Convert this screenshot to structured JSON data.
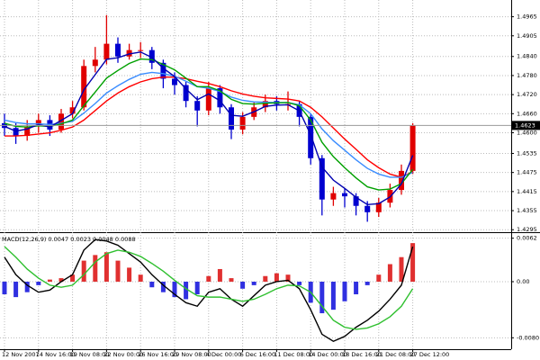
{
  "chart_data": [
    {
      "type": "candlestick",
      "categories": [
        "12 Nov 2007",
        null,
        null,
        "14 Nov 16:00",
        null,
        null,
        "19 Nov 08:00",
        null,
        null,
        "22 Nov 00:00",
        null,
        null,
        "26 Nov 16:00",
        null,
        null,
        "29 Nov 08:00",
        null,
        null,
        "4 Dec 00:00",
        null,
        null,
        "6 Dec 16:00",
        null,
        null,
        "11 Dec 08:00",
        null,
        null,
        "14 Dec 00:00",
        null,
        null,
        "18 Dec 16:00",
        null,
        null,
        "21 Dec 08:00",
        null,
        null,
        "27 Dec 12:00"
      ],
      "open": [
        1.463,
        1.4615,
        1.459,
        1.462,
        1.464,
        1.461,
        1.466,
        1.468,
        1.481,
        1.483,
        1.488,
        1.484,
        1.486,
        1.486,
        1.482,
        1.477,
        1.475,
        1.47,
        1.467,
        1.474,
        1.468,
        1.461,
        1.465,
        1.468,
        1.47,
        1.469,
        1.469,
        1.465,
        1.452,
        1.439,
        1.441,
        1.44,
        1.437,
        1.435,
        1.438,
        1.442,
        1.448
      ],
      "high": [
        1.466,
        1.463,
        1.464,
        1.466,
        1.4655,
        1.4675,
        1.47,
        1.483,
        1.487,
        1.497,
        1.49,
        1.488,
        1.4885,
        1.487,
        1.483,
        1.479,
        1.476,
        1.4715,
        1.476,
        1.475,
        1.469,
        1.4665,
        1.4695,
        1.472,
        1.4715,
        1.473,
        1.47,
        1.466,
        1.453,
        1.443,
        1.4425,
        1.441,
        1.4385,
        1.4395,
        1.444,
        1.45,
        1.463
      ],
      "low": [
        1.459,
        1.4565,
        1.4575,
        1.46,
        1.459,
        1.46,
        1.4645,
        1.467,
        1.479,
        1.4815,
        1.482,
        1.483,
        1.4835,
        1.48,
        1.474,
        1.472,
        1.468,
        1.462,
        1.4655,
        1.466,
        1.458,
        1.4595,
        1.464,
        1.4665,
        1.467,
        1.467,
        1.462,
        1.45,
        1.434,
        1.437,
        1.4365,
        1.434,
        1.432,
        1.4335,
        1.4365,
        1.4405,
        1.447
      ],
      "close": [
        1.4615,
        1.459,
        1.462,
        1.464,
        1.461,
        1.466,
        1.468,
        1.481,
        1.483,
        1.488,
        1.484,
        1.486,
        1.486,
        1.482,
        1.477,
        1.475,
        1.47,
        1.467,
        1.474,
        1.468,
        1.461,
        1.465,
        1.468,
        1.47,
        1.469,
        1.469,
        1.465,
        1.452,
        1.439,
        1.441,
        1.44,
        1.437,
        1.435,
        1.438,
        1.442,
        1.448,
        1.4623
      ],
      "up_color": "#e00000",
      "down_color": "#0000d0",
      "series": [
        {
          "color": "#ff0000",
          "values": [
            1.459,
            1.459,
            1.4592,
            1.4596,
            1.46,
            1.4608,
            1.4618,
            1.464,
            1.467,
            1.47,
            1.4725,
            1.4745,
            1.476,
            1.477,
            1.4775,
            1.4775,
            1.477,
            1.4762,
            1.4755,
            1.4745,
            1.4732,
            1.4722,
            1.4715,
            1.471,
            1.4708,
            1.4706,
            1.47,
            1.468,
            1.465,
            1.4615,
            1.458,
            1.4548,
            1.4515,
            1.449,
            1.447,
            1.446,
            1.4478
          ]
        },
        {
          "color": "#3a8cff",
          "values": [
            1.464,
            1.4632,
            1.4628,
            1.4628,
            1.4626,
            1.463,
            1.4636,
            1.4662,
            1.4692,
            1.4725,
            1.4748,
            1.4768,
            1.4784,
            1.479,
            1.4786,
            1.4778,
            1.4762,
            1.4745,
            1.474,
            1.473,
            1.4712,
            1.4702,
            1.4697,
            1.4696,
            1.4695,
            1.4695,
            1.4688,
            1.466,
            1.4612,
            1.4575,
            1.4545,
            1.4515,
            1.4488,
            1.447,
            1.446,
            1.446,
            1.4475
          ]
        },
        {
          "color": "#00a000",
          "values": [
            1.463,
            1.462,
            1.4618,
            1.4622,
            1.462,
            1.4628,
            1.464,
            1.4685,
            1.4728,
            1.4772,
            1.4796,
            1.4818,
            1.4832,
            1.483,
            1.4815,
            1.4798,
            1.4772,
            1.4745,
            1.4745,
            1.4732,
            1.4705,
            1.4692,
            1.469,
            1.4693,
            1.4694,
            1.4695,
            1.4685,
            1.464,
            1.457,
            1.4525,
            1.449,
            1.4458,
            1.443,
            1.442,
            1.4423,
            1.444,
            1.4485
          ]
        },
        {
          "color": "#0000b0",
          "values": [
            1.462,
            1.4605,
            1.4612,
            1.4626,
            1.4618,
            1.4639,
            1.466,
            1.4735,
            1.4783,
            1.4831,
            1.4836,
            1.4848,
            1.4854,
            1.4837,
            1.4803,
            1.4777,
            1.4738,
            1.4704,
            1.4722,
            1.4701,
            1.4655,
            1.4652,
            1.4666,
            1.4683,
            1.4687,
            1.4688,
            1.4669,
            1.4594,
            1.4492,
            1.4451,
            1.4425,
            1.4397,
            1.4374,
            1.4377,
            1.4398,
            1.4439,
            1.4529
          ]
        }
      ],
      "current_price": 1.4623,
      "ylim": [
        1.429,
        1.5012
      ],
      "yticks": [
        1.4965,
        1.4905,
        {
          "value": 1.484,
          "label": "1.4840"
        },
        {
          "value": 1.478,
          "label": "1.4780"
        },
        {
          "value": 1.472,
          "label": "1.4720"
        },
        {
          "value": 1.466,
          "label": "1.4660"
        },
        {
          "value": 1.46,
          "label": "1.4600"
        },
        1.4535,
        1.4475,
        1.4415,
        1.4355,
        1.4295
      ],
      "grid": true
    },
    {
      "type": "macd",
      "title": "MACD(12,26,9) 0.0047 0.0023 0.0048 0.0088",
      "histogram": [
        -0.0018,
        -0.0022,
        -0.0015,
        -0.0005,
        0.0003,
        0.0005,
        0.001,
        0.003,
        0.0038,
        0.0042,
        0.003,
        0.002,
        0.001,
        -0.0008,
        -0.0015,
        -0.0022,
        -0.0025,
        -0.0018,
        0.0008,
        0.0018,
        0.0005,
        -0.001,
        -0.0005,
        0.0008,
        0.0012,
        0.001,
        -0.0005,
        -0.003,
        -0.0045,
        -0.004,
        -0.0028,
        -0.0018,
        -0.0005,
        0.001,
        0.0025,
        0.0035,
        0.0055
      ],
      "positive_color": "#e03030",
      "negative_color": "#3030e0",
      "series": [
        {
          "color": "#000000",
          "values": [
            0.0035,
            0.001,
            -0.0005,
            -0.0015,
            -0.0012,
            0.0,
            0.001,
            0.0045,
            0.006,
            0.0058,
            0.0052,
            0.004,
            0.0028,
            0.001,
            -0.0005,
            -0.0018,
            -0.003,
            -0.0035,
            -0.0015,
            -0.001,
            -0.0025,
            -0.0035,
            -0.002,
            -0.0005,
            0.0,
            0.0002,
            -0.001,
            -0.004,
            -0.0075,
            -0.0085,
            -0.0078,
            -0.0065,
            -0.0055,
            -0.0042,
            -0.0025,
            -0.0005,
            0.005
          ]
        },
        {
          "color": "#30c030",
          "values": [
            0.005,
            0.0035,
            0.0018,
            0.0005,
            -0.0005,
            -0.0008,
            -0.0005,
            0.001,
            0.0028,
            0.004,
            0.0045,
            0.0042,
            0.0036,
            0.0026,
            0.0015,
            0.0002,
            -0.001,
            -0.002,
            -0.0022,
            -0.0022,
            -0.0025,
            -0.0028,
            -0.0025,
            -0.0018,
            -0.001,
            -0.0005,
            -0.0006,
            -0.0015,
            -0.0035,
            -0.0055,
            -0.0065,
            -0.0068,
            -0.0066,
            -0.006,
            -0.005,
            -0.0035,
            -0.001
          ]
        }
      ],
      "ylim": [
        -0.0095,
        0.0068
      ],
      "yticks": [
        0.0062,
        {
          "value": 0,
          "label": "0.00"
        },
        {
          "value": -0.008,
          "label": "-0.0080"
        }
      ],
      "grid": true
    }
  ]
}
